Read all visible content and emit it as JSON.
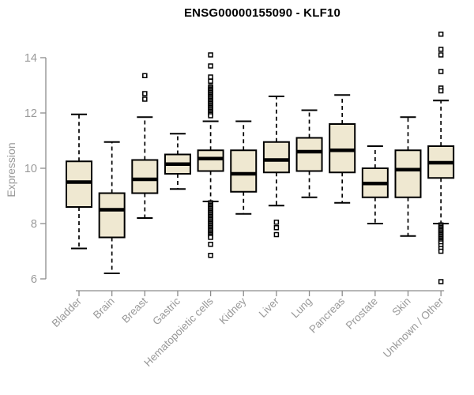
{
  "chart_data": {
    "type": "boxplot",
    "title": "ENSG00000155090 - KLF10",
    "ylabel": "Expression",
    "xlabel": "",
    "ylim": [
      6,
      14
    ],
    "yticks": [
      6,
      8,
      10,
      12,
      14
    ],
    "grid": false,
    "legend": false,
    "style": {
      "box_fill": "#efe8d1",
      "box_stroke": "#000000",
      "axis_color": "#8c8c8c",
      "tick_label_color": "#999999",
      "title_color": "#000000",
      "background": "#ffffff"
    },
    "categories": [
      "Bladder",
      "Brain",
      "Breast",
      "Gastric",
      "Hematopoietic cells",
      "Kidney",
      "Liver",
      "Lung",
      "Pancreas",
      "Prostate",
      "Skin",
      "Unknown / Other"
    ],
    "boxes": [
      {
        "category": "Bladder",
        "low": 7.1,
        "q1": 8.6,
        "median": 9.5,
        "q3": 10.25,
        "high": 11.95,
        "outliers": []
      },
      {
        "category": "Brain",
        "low": 6.2,
        "q1": 7.5,
        "median": 8.5,
        "q3": 9.1,
        "high": 10.95,
        "outliers": []
      },
      {
        "category": "Breast",
        "low": 8.2,
        "q1": 9.1,
        "median": 9.6,
        "q3": 10.3,
        "high": 11.85,
        "outliers": [
          13.35,
          12.7,
          12.5
        ]
      },
      {
        "category": "Gastric",
        "low": 9.25,
        "q1": 9.8,
        "median": 10.15,
        "q3": 10.5,
        "high": 11.25,
        "outliers": []
      },
      {
        "category": "Hematopoietic cells",
        "low": 8.8,
        "q1": 9.9,
        "median": 10.35,
        "q3": 10.65,
        "high": 11.7,
        "outliers": [
          14.1,
          13.7,
          13.3,
          13.15,
          12.95,
          12.9,
          12.85,
          12.8,
          12.75,
          12.7,
          12.65,
          12.6,
          12.55,
          12.5,
          12.45,
          12.4,
          12.35,
          12.3,
          12.25,
          12.2,
          12.15,
          12.1,
          12.05,
          12.0,
          11.95,
          11.9,
          8.75,
          8.7,
          8.65,
          8.6,
          8.55,
          8.5,
          8.45,
          8.4,
          8.35,
          8.3,
          8.25,
          8.2,
          8.15,
          8.1,
          8.05,
          8.0,
          7.95,
          7.9,
          7.85,
          7.8,
          7.75,
          7.7,
          7.65,
          7.6,
          7.55,
          7.5,
          7.25,
          6.85
        ]
      },
      {
        "category": "Kidney",
        "low": 8.35,
        "q1": 9.15,
        "median": 9.8,
        "q3": 10.65,
        "high": 11.7,
        "outliers": []
      },
      {
        "category": "Liver",
        "low": 8.65,
        "q1": 9.85,
        "median": 10.3,
        "q3": 10.95,
        "high": 12.6,
        "outliers": [
          8.05,
          7.85,
          7.6
        ]
      },
      {
        "category": "Lung",
        "low": 8.95,
        "q1": 9.9,
        "median": 10.6,
        "q3": 11.1,
        "high": 12.1,
        "outliers": []
      },
      {
        "category": "Pancreas",
        "low": 8.75,
        "q1": 9.85,
        "median": 10.65,
        "q3": 11.6,
        "high": 12.65,
        "outliers": []
      },
      {
        "category": "Prostate",
        "low": 8.0,
        "q1": 8.95,
        "median": 9.45,
        "q3": 10.0,
        "high": 10.8,
        "outliers": []
      },
      {
        "category": "Skin",
        "low": 7.55,
        "q1": 8.95,
        "median": 9.95,
        "q3": 10.65,
        "high": 11.85,
        "outliers": []
      },
      {
        "category": "Unknown / Other",
        "low": 8.0,
        "q1": 9.65,
        "median": 10.2,
        "q3": 10.8,
        "high": 12.45,
        "outliers": [
          14.85,
          14.3,
          14.1,
          13.5,
          12.9,
          12.8,
          7.95,
          7.9,
          7.85,
          7.8,
          7.75,
          7.7,
          7.65,
          7.6,
          7.55,
          7.5,
          7.45,
          7.4,
          7.35,
          7.3,
          7.2,
          7.1,
          7.0,
          5.9
        ]
      }
    ]
  }
}
